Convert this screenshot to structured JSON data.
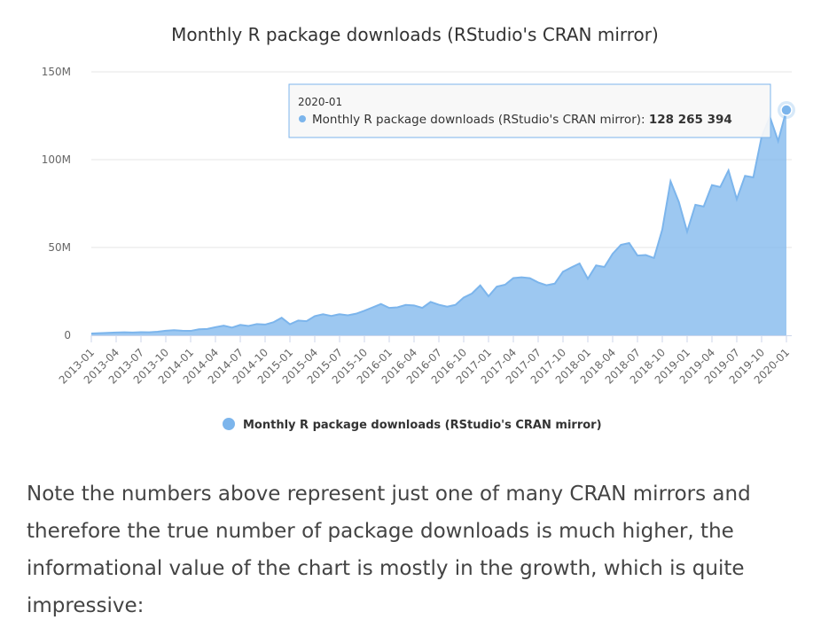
{
  "chart_data": {
    "type": "area",
    "title": "Monthly R package downloads (RStudio's CRAN mirror)",
    "xlabel": "",
    "ylabel": "",
    "ylim": [
      0,
      150000000
    ],
    "y_ticks": [
      {
        "value": 0,
        "label": "0"
      },
      {
        "value": 50000000,
        "label": "50M"
      },
      {
        "value": 100000000,
        "label": "100M"
      },
      {
        "value": 150000000,
        "label": "150M"
      }
    ],
    "x_tick_labels": [
      "2013-01",
      "2013-04",
      "2013-07",
      "2013-10",
      "2014-01",
      "2014-04",
      "2014-07",
      "2014-10",
      "2015-01",
      "2015-04",
      "2015-07",
      "2015-10",
      "2016-01",
      "2016-04",
      "2016-07",
      "2016-10",
      "2017-01",
      "2017-04",
      "2017-07",
      "2017-10",
      "2018-01",
      "2018-04",
      "2018-07",
      "2018-10",
      "2019-01",
      "2019-04",
      "2019-07",
      "2019-10",
      "2020-01"
    ],
    "series": [
      {
        "name": "Monthly R package downloads (RStudio's CRAN mirror)",
        "color": "#7cb5ec",
        "x": [
          "2013-01",
          "2013-02",
          "2013-03",
          "2013-04",
          "2013-05",
          "2013-06",
          "2013-07",
          "2013-08",
          "2013-09",
          "2013-10",
          "2013-11",
          "2013-12",
          "2014-01",
          "2014-02",
          "2014-03",
          "2014-04",
          "2014-05",
          "2014-06",
          "2014-07",
          "2014-08",
          "2014-09",
          "2014-10",
          "2014-11",
          "2014-12",
          "2015-01",
          "2015-02",
          "2015-03",
          "2015-04",
          "2015-05",
          "2015-06",
          "2015-07",
          "2015-08",
          "2015-09",
          "2015-10",
          "2015-11",
          "2015-12",
          "2016-01",
          "2016-02",
          "2016-03",
          "2016-04",
          "2016-05",
          "2016-06",
          "2016-07",
          "2016-08",
          "2016-09",
          "2016-10",
          "2016-11",
          "2016-12",
          "2017-01",
          "2017-02",
          "2017-03",
          "2017-04",
          "2017-05",
          "2017-06",
          "2017-07",
          "2017-08",
          "2017-09",
          "2017-10",
          "2017-11",
          "2017-12",
          "2018-01",
          "2018-02",
          "2018-03",
          "2018-04",
          "2018-05",
          "2018-06",
          "2018-07",
          "2018-08",
          "2018-09",
          "2018-10",
          "2018-11",
          "2018-12",
          "2019-01",
          "2019-02",
          "2019-03",
          "2019-04",
          "2019-05",
          "2019-06",
          "2019-07",
          "2019-08",
          "2019-09",
          "2019-10",
          "2019-11",
          "2019-12",
          "2020-01"
        ],
        "values": [
          1000000.0,
          1200000.0,
          1400000.0,
          1600000.0,
          1700000.0,
          1600000.0,
          1800000.0,
          1700000.0,
          2000000.0,
          2600000.0,
          2900000.0,
          2600000.0,
          2500000.0,
          3400000.0,
          3600000.0,
          4600000.0,
          5500000.0,
          4400000.0,
          5900000.0,
          5300000.0,
          6400000.0,
          6100000.0,
          7400000.0,
          10000000.0,
          6300000.0,
          8400000.0,
          8000000.0,
          10900000.0,
          12000000.0,
          11000000.0,
          12000000.0,
          11400000.0,
          12300000.0,
          14000000.0,
          15900000.0,
          17800000.0,
          15600000.0,
          15900000.0,
          17300000.0,
          17000000.0,
          15600000.0,
          19000000.0,
          17400000.0,
          16300000.0,
          17300000.0,
          21500000.0,
          23800000.0,
          28400000.0,
          22200000.0,
          27700000.0,
          28800000.0,
          32600000.0,
          33000000.0,
          32500000.0,
          30100000.0,
          28500000.0,
          29400000.0,
          36200000.0,
          38600000.0,
          40900000.0,
          32200000.0,
          39800000.0,
          38900000.0,
          46400000.0,
          51500000.0,
          52500000.0,
          45400000.0,
          45700000.0,
          44000000.0,
          60300000.0,
          87700000.0,
          75900000.0,
          59000000.0,
          74300000.0,
          73300000.0,
          85500000.0,
          84400000.0,
          93900000.0,
          77500000.0,
          90800000.0,
          89900000.0,
          113000000.0,
          124400000.0,
          110600000.0,
          128265394
        ]
      }
    ],
    "legend": {
      "position": "bottom-center",
      "label": "Monthly R package downloads (RStudio's CRAN mirror)"
    },
    "grid": true,
    "tooltip": {
      "date": "2020-01",
      "series_label": "Monthly R package downloads (RStudio's CRAN mirror):",
      "value_label": "128 265 394"
    }
  },
  "note": {
    "text": "Note the numbers above represent just one of many CRAN mirrors and therefore the true number of package downloads is much higher, the informational value of the chart is mostly in the growth, which is quite impressive:"
  }
}
